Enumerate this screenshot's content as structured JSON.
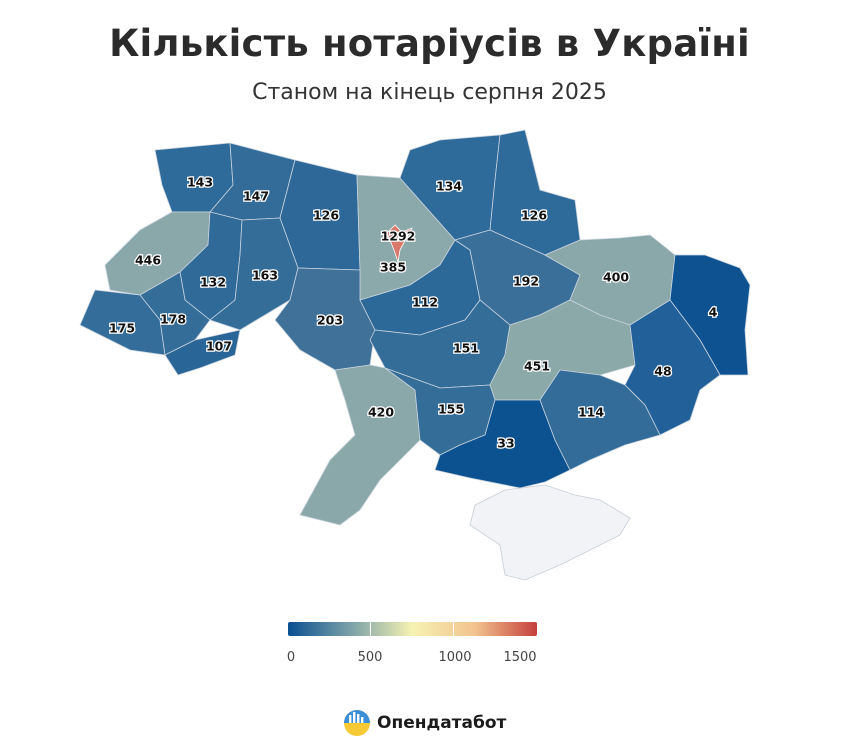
{
  "header": {
    "title": "Кількість нотаріусів в Україні",
    "subtitle": "Станом на кінець серпня 2025"
  },
  "map": {
    "regions": [
      {
        "id": "volyn",
        "value": "143"
      },
      {
        "id": "rivne",
        "value": "147"
      },
      {
        "id": "zhytomyr",
        "value": "126"
      },
      {
        "id": "chernihiv",
        "value": "134"
      },
      {
        "id": "sumy",
        "value": "126"
      },
      {
        "id": "lviv",
        "value": "446"
      },
      {
        "id": "ternopil",
        "value": "132"
      },
      {
        "id": "khmelnytskyi",
        "value": "163"
      },
      {
        "id": "kyiv-city",
        "value": "1292"
      },
      {
        "id": "kyiv-oblast",
        "value": "385"
      },
      {
        "id": "poltava",
        "value": "192"
      },
      {
        "id": "kharkiv",
        "value": "400"
      },
      {
        "id": "luhansk",
        "value": "4"
      },
      {
        "id": "zakarpattia",
        "value": "175"
      },
      {
        "id": "ivano-frankivsk",
        "value": "178"
      },
      {
        "id": "chernivtsi",
        "value": "107"
      },
      {
        "id": "vinnytsia",
        "value": "203"
      },
      {
        "id": "cherkasy",
        "value": "112"
      },
      {
        "id": "kirovohrad",
        "value": "151"
      },
      {
        "id": "dnipropetrovsk",
        "value": "451"
      },
      {
        "id": "donetsk",
        "value": "48"
      },
      {
        "id": "odesa",
        "value": "420"
      },
      {
        "id": "mykolaiv",
        "value": "155"
      },
      {
        "id": "kherson",
        "value": "33"
      },
      {
        "id": "zaporizhzhia",
        "value": "114"
      },
      {
        "id": "crimea",
        "value": ""
      }
    ],
    "colors": {
      "dark": "#1f5c91",
      "mid": "#3d6f9a",
      "light": "#8aa7a9",
      "crimea": "#f1f3f6",
      "city": "#d9786c"
    }
  },
  "legend": {
    "ticks": [
      "0",
      "500",
      "1000",
      "1500"
    ],
    "gradient": [
      "#0b4f91",
      "#7aa0a8",
      "#f6f2b2",
      "#f2c38e",
      "#c4403b"
    ]
  },
  "brand": {
    "name": "Опендатабот",
    "logo": "opendatabot-logo-icon"
  }
}
